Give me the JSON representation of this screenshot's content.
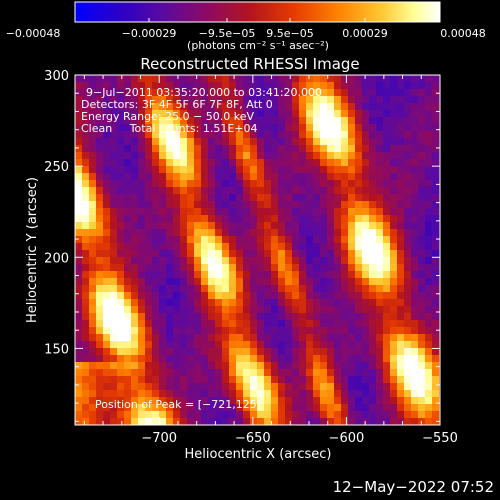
{
  "chart_data": {
    "type": "heatmap",
    "title": "Reconstructed RHESSI Image",
    "xlabel": "Heliocentric X (arcsec)",
    "ylabel": "Heliocentric Y (arcsec)",
    "xlim": [
      -745,
      -550
    ],
    "ylim": [
      108,
      300
    ],
    "xticks": [
      -700,
      -650,
      -600,
      -550
    ],
    "yticks": [
      150,
      200,
      250,
      300
    ],
    "xtick_labels": [
      "−700",
      "−650",
      "−600",
      "−550"
    ],
    "ytick_labels": [
      "150",
      "200",
      "250",
      "300"
    ],
    "colorbar": {
      "range": [
        -0.00048,
        0.00048
      ],
      "tick_labels": [
        "−0.00048",
        "−0.00029",
        "−9.5e−05",
        "9.5e−05",
        "0.00029",
        "0.00048"
      ],
      "unit_text": "(photons cm⁻² s⁻¹ asec⁻²)",
      "colormap": [
        "#0000ff",
        "#2a00c8",
        "#5a0aa0",
        "#8c0a64",
        "#b4141e",
        "#e63c00",
        "#ff8200",
        "#ffc832",
        "#ffff96",
        "#ffffff"
      ]
    },
    "annotations": [
      "9−Jul−2011 03:35:20.000 to 03:41:20.000",
      "Detectors: 3F 4F 5F 6F 7F 8F, Att 0",
      "Energy Range: 25.0 − 50.0 keV",
      "Clean     Total counts: 1.51E+04",
      "Position of Peak = [−721,125]"
    ],
    "grid": false,
    "legend": "none"
  },
  "footer": {
    "timestamp": "12−May−2022 07:52"
  }
}
